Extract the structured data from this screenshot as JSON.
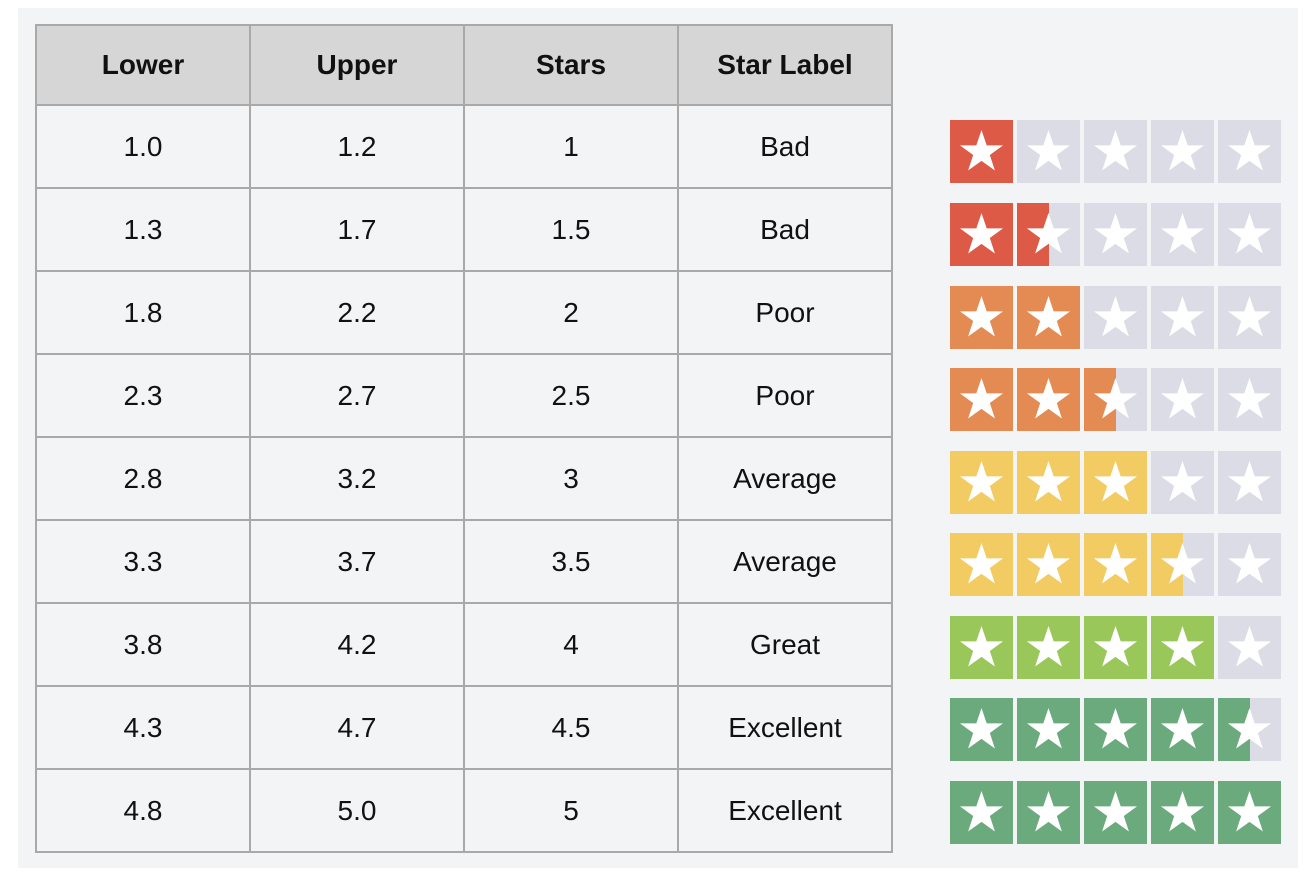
{
  "table": {
    "headers": [
      "Lower",
      "Upper",
      "Stars",
      "Star Label"
    ],
    "rows": [
      {
        "lower": "1.0",
        "upper": "1.2",
        "stars": "1",
        "label": "Bad",
        "rating": 1,
        "color": "#dc5a46"
      },
      {
        "lower": "1.3",
        "upper": "1.7",
        "stars": "1.5",
        "label": "Bad",
        "rating": 1.5,
        "color": "#dc5a46"
      },
      {
        "lower": "1.8",
        "upper": "2.2",
        "stars": "2",
        "label": "Poor",
        "rating": 2,
        "color": "#e38b52"
      },
      {
        "lower": "2.3",
        "upper": "2.7",
        "stars": "2.5",
        "label": "Poor",
        "rating": 2.5,
        "color": "#e38b52"
      },
      {
        "lower": "2.8",
        "upper": "3.2",
        "stars": "3",
        "label": "Average",
        "rating": 3,
        "color": "#f2cb62"
      },
      {
        "lower": "3.3",
        "upper": "3.7",
        "stars": "3.5",
        "label": "Average",
        "rating": 3.5,
        "color": "#f2cb62"
      },
      {
        "lower": "3.8",
        "upper": "4.2",
        "stars": "4",
        "label": "Great",
        "rating": 4,
        "color": "#9ac75a"
      },
      {
        "lower": "4.3",
        "upper": "4.7",
        "stars": "4.5",
        "label": "Excellent",
        "rating": 4.5,
        "color": "#6aaa7c"
      },
      {
        "lower": "4.8",
        "upper": "5.0",
        "stars": "5",
        "label": "Excellent",
        "rating": 5,
        "color": "#6aaa7c"
      }
    ]
  },
  "star_empty_color": "#dcdce6",
  "star_icon": "star-icon"
}
